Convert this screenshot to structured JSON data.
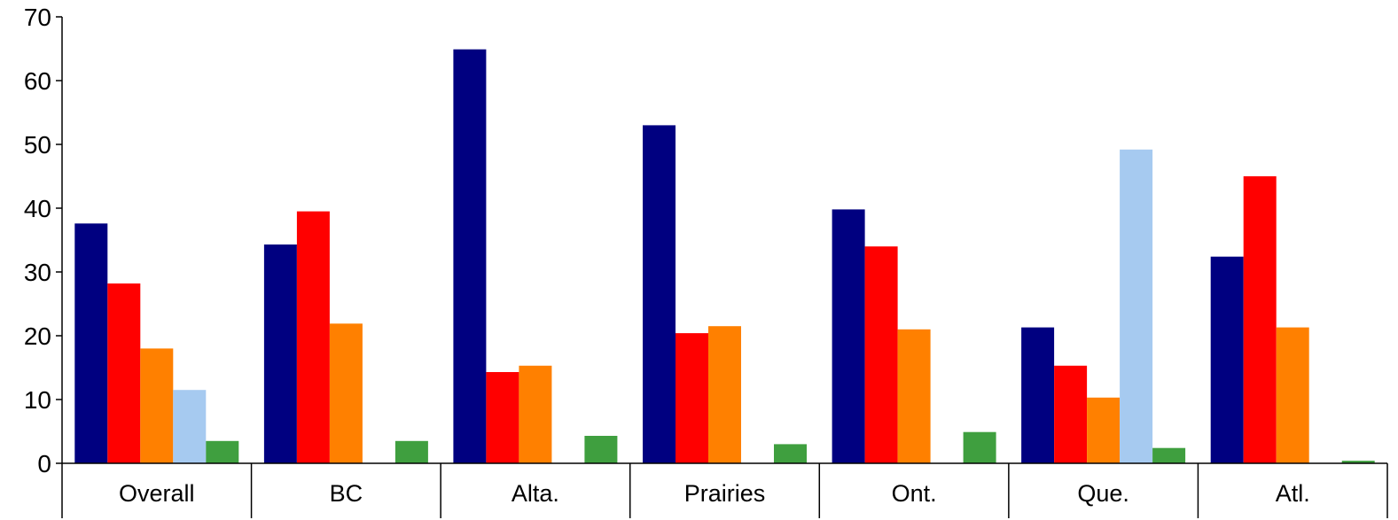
{
  "chart_data": {
    "type": "bar",
    "title": "",
    "xlabel": "",
    "ylabel": "",
    "ylim": [
      0,
      70
    ],
    "yticks": [
      0,
      10,
      20,
      30,
      40,
      50,
      60,
      70
    ],
    "grid": false,
    "legend": "none",
    "categories": [
      "Overall",
      "BC",
      "Alta.",
      "Prairies",
      "Ont.",
      "Que.",
      "Atl."
    ],
    "series": [
      {
        "color": "#000080",
        "values": [
          37.6,
          34.3,
          64.9,
          53.0,
          39.8,
          21.3,
          32.4
        ]
      },
      {
        "color": "#ff0000",
        "values": [
          28.2,
          39.5,
          14.3,
          20.4,
          34.0,
          15.3,
          45.0
        ]
      },
      {
        "color": "#ff8000",
        "values": [
          18.0,
          21.9,
          15.3,
          21.5,
          21.0,
          10.3,
          21.3
        ]
      },
      {
        "color": "#a6caf0",
        "values": [
          11.5,
          0,
          0,
          0,
          0,
          49.2,
          0
        ]
      },
      {
        "color": "#3f9f3f",
        "values": [
          3.5,
          3.5,
          4.3,
          3.0,
          4.9,
          2.4,
          0.4
        ]
      }
    ]
  }
}
